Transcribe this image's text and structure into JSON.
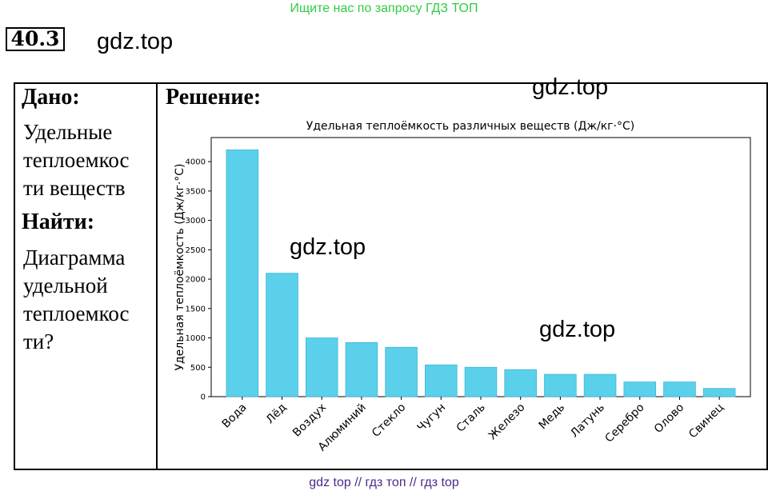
{
  "banner": "Ищите нас по запросу ГДЗ ТОП",
  "problem_number": "40.3",
  "watermark": "gdz.top",
  "given": {
    "heading": "Дано:",
    "text_lines": [
      "Удельные",
      "теплоемкос",
      "ти веществ"
    ]
  },
  "find": {
    "heading": "Найти:",
    "text_lines": [
      "Диаграмма",
      "удельной",
      "теплоемкос",
      "ти?"
    ]
  },
  "solution_heading": "Решение:",
  "footer": "gdz top  //  гдз топ  //  гдз top",
  "chart_data": {
    "type": "bar",
    "title": "Удельная теплоёмкость различных веществ (Дж/кг·°C)",
    "xlabel": "",
    "ylabel": "Удельная теплоёмкость (Дж/кг·°C)",
    "categories": [
      "Вода",
      "Лёд",
      "Воздух",
      "Алюминий",
      "Стекло",
      "Чугун",
      "Сталь",
      "Железо",
      "Медь",
      "Латунь",
      "Серебро",
      "Олово",
      "Свинец"
    ],
    "values": [
      4200,
      2100,
      1000,
      920,
      840,
      540,
      500,
      460,
      380,
      380,
      250,
      250,
      140
    ],
    "ylim": [
      0,
      4410
    ],
    "yticks": [
      0,
      500,
      1000,
      1500,
      2000,
      2500,
      3000,
      3500,
      4000
    ],
    "bar_color": "#5bd0ea",
    "grid": false
  }
}
